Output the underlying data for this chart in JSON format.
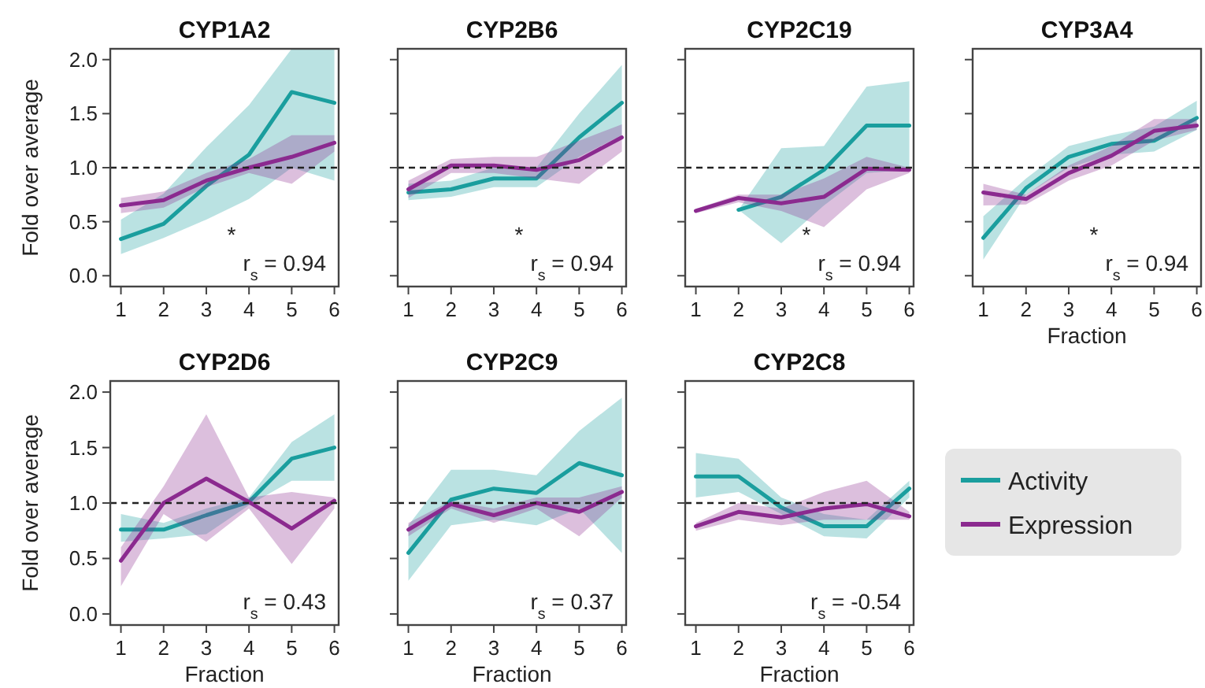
{
  "chart_data": [
    {
      "type": "line",
      "title": "CYP1A2",
      "ylabel": "Fold over average",
      "x": [
        1,
        2,
        3,
        4,
        5,
        6
      ],
      "xlim": [
        0.75,
        6.1
      ],
      "xticks": [
        1,
        2,
        3,
        4,
        5,
        6
      ],
      "ylim": [
        -0.1,
        2.1
      ],
      "yticks": [
        {
          "value": 0,
          "label": "0.0"
        },
        {
          "value": 0.5,
          "label": "0.5"
        },
        {
          "value": 1,
          "label": "1.0"
        },
        {
          "value": 1.5,
          "label": "1.5"
        },
        {
          "value": 2,
          "label": "2.0"
        }
      ],
      "ref_lines": [
        {
          "axis": "y",
          "value": 1,
          "line_style": "dashed",
          "color": "#222222"
        }
      ],
      "annotations": [
        "*",
        "r$_{s}$ = 0.94"
      ],
      "series": [
        {
          "color": "#1a9e9e",
          "values": [
            0.34,
            0.48,
            0.83,
            1.12,
            1.7,
            1.6
          ],
          "lower": [
            0.2,
            0.35,
            0.52,
            0.71,
            1.0,
            0.88
          ],
          "upper": [
            0.52,
            0.76,
            1.19,
            1.58,
            2.1,
            2.1
          ]
        },
        {
          "color": "#8b2a8f",
          "values": [
            0.65,
            0.7,
            0.88,
            1.0,
            1.1,
            1.23
          ],
          "lower": [
            0.58,
            0.63,
            0.82,
            0.95,
            0.85,
            1.15
          ],
          "upper": [
            0.72,
            0.78,
            0.95,
            1.08,
            1.3,
            1.3
          ]
        }
      ]
    },
    {
      "type": "line",
      "title": "CYP2B6",
      "x": [
        1,
        2,
        3,
        4,
        5,
        6
      ],
      "xlim": [
        0.75,
        6.1
      ],
      "xticks": [
        1,
        2,
        3,
        4,
        5,
        6
      ],
      "ylim": [
        -0.1,
        2.1
      ],
      "yticks": [
        {
          "value": 0,
          "label": null
        },
        {
          "value": 0.5,
          "label": null
        },
        {
          "value": 1,
          "label": null
        },
        {
          "value": 1.5,
          "label": null
        },
        {
          "value": 2,
          "label": null
        }
      ],
      "tick_labels": "x",
      "ref_lines": [
        {
          "axis": "y",
          "value": 1,
          "line_style": "dashed",
          "color": "#222222"
        }
      ],
      "annotations": [
        "*",
        "r$_{s}$ = 0.94"
      ],
      "series": [
        {
          "color": "#1a9e9e",
          "values": [
            0.77,
            0.8,
            0.9,
            0.9,
            1.28,
            1.6
          ],
          "lower": [
            0.7,
            0.73,
            0.82,
            0.82,
            1.1,
            1.3
          ],
          "upper": [
            0.85,
            0.88,
            1.0,
            1.0,
            1.5,
            1.95
          ]
        },
        {
          "color": "#8b2a8f",
          "values": [
            0.8,
            1.02,
            1.02,
            0.98,
            1.07,
            1.28
          ],
          "lower": [
            0.72,
            0.95,
            0.95,
            0.9,
            0.85,
            1.15
          ],
          "upper": [
            0.88,
            1.08,
            1.1,
            1.1,
            1.25,
            1.4
          ]
        }
      ]
    },
    {
      "type": "line",
      "title": "CYP2C19",
      "x": [
        1,
        2,
        3,
        4,
        5,
        6
      ],
      "xlim": [
        0.75,
        6.1
      ],
      "xticks": [
        1,
        2,
        3,
        4,
        5,
        6
      ],
      "ylim": [
        -0.1,
        2.1
      ],
      "yticks": [
        {
          "value": 0,
          "label": null
        },
        {
          "value": 0.5,
          "label": null
        },
        {
          "value": 1,
          "label": null
        },
        {
          "value": 1.5,
          "label": null
        },
        {
          "value": 2,
          "label": null
        }
      ],
      "tick_labels": "x",
      "ref_lines": [
        {
          "axis": "y",
          "value": 1,
          "line_style": "dashed",
          "color": "#222222"
        }
      ],
      "annotations": [
        "*",
        "r$_{s}$ = 0.94"
      ],
      "series": [
        {
          "color": "#1a9e9e",
          "values": [
            null,
            0.61,
            0.73,
            0.98,
            1.39,
            1.39
          ],
          "lower": [
            null,
            0.61,
            0.3,
            0.65,
            0.95,
            0.98
          ],
          "upper": [
            null,
            0.61,
            1.18,
            1.2,
            1.75,
            1.8
          ]
        },
        {
          "color": "#8b2a8f",
          "values": [
            0.6,
            0.72,
            0.67,
            0.73,
            0.99,
            0.98
          ],
          "lower": [
            0.58,
            0.68,
            0.6,
            0.45,
            0.8,
            0.95
          ],
          "upper": [
            0.62,
            0.75,
            0.75,
            0.9,
            1.1,
            1.0
          ]
        }
      ]
    },
    {
      "type": "line",
      "title": "CYP3A4",
      "xlabel": "Fraction",
      "x": [
        1,
        2,
        3,
        4,
        5,
        6
      ],
      "xlim": [
        0.75,
        6.1
      ],
      "xticks": [
        1,
        2,
        3,
        4,
        5,
        6
      ],
      "ylim": [
        -0.1,
        2.1
      ],
      "yticks": [
        {
          "value": 0,
          "label": null
        },
        {
          "value": 0.5,
          "label": null
        },
        {
          "value": 1,
          "label": null
        },
        {
          "value": 1.5,
          "label": null
        },
        {
          "value": 2,
          "label": null
        }
      ],
      "tick_labels": "x",
      "ref_lines": [
        {
          "axis": "y",
          "value": 1,
          "line_style": "dashed",
          "color": "#222222"
        }
      ],
      "annotations": [
        "*",
        "r$_{s}$ = 0.94"
      ],
      "series": [
        {
          "color": "#1a9e9e",
          "values": [
            0.35,
            0.81,
            1.1,
            1.22,
            1.25,
            1.46
          ],
          "lower": [
            0.15,
            0.75,
            1.0,
            1.12,
            1.15,
            1.35
          ],
          "upper": [
            0.55,
            0.9,
            1.2,
            1.3,
            1.38,
            1.62
          ]
        },
        {
          "color": "#8b2a8f",
          "values": [
            0.77,
            0.71,
            0.95,
            1.11,
            1.34,
            1.39
          ],
          "lower": [
            0.65,
            0.66,
            0.88,
            1.02,
            1.25,
            1.35
          ],
          "upper": [
            0.85,
            0.75,
            1.02,
            1.2,
            1.45,
            1.45
          ]
        }
      ]
    },
    {
      "type": "line",
      "title": "CYP2D6",
      "xlabel": "Fraction",
      "ylabel": "Fold over average",
      "x": [
        1,
        2,
        3,
        4,
        5,
        6
      ],
      "xlim": [
        0.75,
        6.1
      ],
      "xticks": [
        1,
        2,
        3,
        4,
        5,
        6
      ],
      "ylim": [
        -0.1,
        2.1
      ],
      "yticks": [
        {
          "value": 0,
          "label": "0.0"
        },
        {
          "value": 0.5,
          "label": "0.5"
        },
        {
          "value": 1,
          "label": "1.0"
        },
        {
          "value": 1.5,
          "label": "1.5"
        },
        {
          "value": 2,
          "label": "2.0"
        }
      ],
      "ref_lines": [
        {
          "axis": "y",
          "value": 1,
          "line_style": "dashed",
          "color": "#222222"
        }
      ],
      "annotations": [
        "r$_{s}$ = 0.43"
      ],
      "series": [
        {
          "color": "#1a9e9e",
          "values": [
            0.76,
            0.76,
            0.89,
            1.01,
            1.4,
            1.5
          ],
          "lower": [
            0.65,
            0.68,
            0.72,
            0.98,
            1.2,
            1.2
          ],
          "upper": [
            0.9,
            0.82,
            0.95,
            1.05,
            1.55,
            1.8
          ]
        },
        {
          "color": "#8b2a8f",
          "values": [
            0.48,
            1.0,
            1.22,
            1.01,
            0.77,
            1.02
          ],
          "lower": [
            0.25,
            0.9,
            0.65,
            0.95,
            0.45,
            0.95
          ],
          "upper": [
            0.6,
            1.15,
            1.8,
            1.05,
            1.1,
            1.05
          ]
        }
      ]
    },
    {
      "type": "line",
      "title": "CYP2C9",
      "xlabel": "Fraction",
      "x": [
        1,
        2,
        3,
        4,
        5,
        6
      ],
      "xlim": [
        0.75,
        6.1
      ],
      "xticks": [
        1,
        2,
        3,
        4,
        5,
        6
      ],
      "ylim": [
        -0.1,
        2.1
      ],
      "yticks": [
        {
          "value": 0,
          "label": null
        },
        {
          "value": 0.5,
          "label": null
        },
        {
          "value": 1,
          "label": null
        },
        {
          "value": 1.5,
          "label": null
        },
        {
          "value": 2,
          "label": null
        }
      ],
      "tick_labels": "x",
      "ref_lines": [
        {
          "axis": "y",
          "value": 1,
          "line_style": "dashed",
          "color": "#222222"
        }
      ],
      "annotations": [
        "r$_{s}$ = 0.37"
      ],
      "series": [
        {
          "color": "#1a9e9e",
          "values": [
            0.55,
            1.03,
            1.13,
            1.09,
            1.36,
            1.25
          ],
          "lower": [
            0.3,
            0.8,
            0.85,
            0.8,
            0.95,
            0.55
          ],
          "upper": [
            0.8,
            1.3,
            1.3,
            1.25,
            1.65,
            1.95
          ]
        },
        {
          "color": "#8b2a8f",
          "values": [
            0.76,
            0.99,
            0.89,
            1.0,
            0.92,
            1.1
          ],
          "lower": [
            0.7,
            0.95,
            0.82,
            0.95,
            0.7,
            1.05
          ],
          "upper": [
            0.82,
            1.02,
            0.95,
            1.05,
            1.05,
            1.15
          ]
        }
      ]
    },
    {
      "type": "line",
      "title": "CYP2C8",
      "xlabel": "Fraction",
      "x": [
        1,
        2,
        3,
        4,
        5,
        6
      ],
      "xlim": [
        0.75,
        6.1
      ],
      "xticks": [
        1,
        2,
        3,
        4,
        5,
        6
      ],
      "ylim": [
        -0.1,
        2.1
      ],
      "yticks": [
        {
          "value": 0,
          "label": null
        },
        {
          "value": 0.5,
          "label": null
        },
        {
          "value": 1,
          "label": null
        },
        {
          "value": 1.5,
          "label": null
        },
        {
          "value": 2,
          "label": null
        }
      ],
      "tick_labels": "x",
      "legend": "right",
      "ref_lines": [
        {
          "axis": "y",
          "value": 1,
          "line_style": "dashed",
          "color": "#222222"
        }
      ],
      "annotations": [
        "r$_{s}$ = -0.54"
      ],
      "series": [
        {
          "name": "Activity",
          "color": "#1a9e9e",
          "values": [
            1.24,
            1.24,
            0.96,
            0.79,
            0.79,
            1.13
          ],
          "lower": [
            1.05,
            1.1,
            0.9,
            0.7,
            0.68,
            1.05
          ],
          "upper": [
            1.45,
            1.4,
            1.05,
            0.9,
            0.85,
            1.2
          ]
        },
        {
          "name": "Expression",
          "color": "#8b2a8f",
          "values": [
            0.79,
            0.92,
            0.87,
            0.95,
            0.99,
            0.88
          ],
          "lower": [
            0.75,
            0.85,
            0.8,
            0.85,
            0.85,
            0.85
          ],
          "upper": [
            0.82,
            1.0,
            0.95,
            1.1,
            1.2,
            0.92
          ]
        }
      ]
    }
  ]
}
